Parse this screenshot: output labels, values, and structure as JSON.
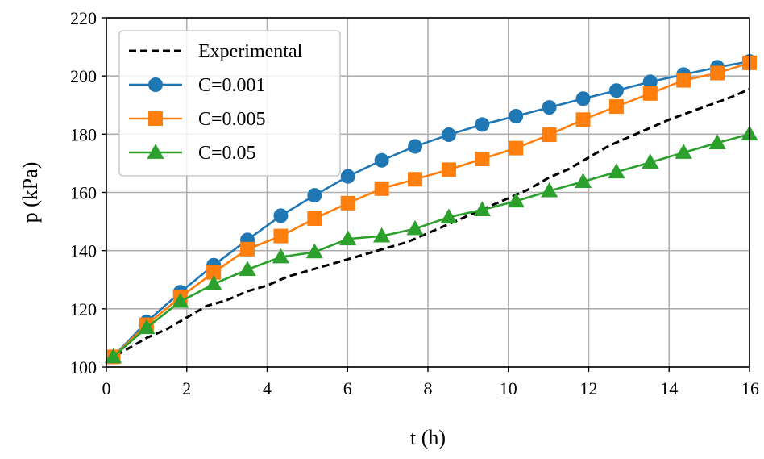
{
  "chart_data": {
    "type": "line",
    "title": "",
    "xlabel": "t (h)",
    "ylabel": "p (kPa)",
    "xlim": [
      0,
      16
    ],
    "ylim": [
      100,
      220
    ],
    "xticks": [
      0,
      2,
      4,
      6,
      8,
      10,
      12,
      14,
      16
    ],
    "yticks": [
      100,
      120,
      140,
      160,
      180,
      200,
      220
    ],
    "grid": true,
    "legend_position": "top-left",
    "series": [
      {
        "name": "Experimental",
        "style": "dashed",
        "marker": "none",
        "color": "#000000",
        "x": [
          0,
          0.5,
          1,
          1.5,
          2,
          2.5,
          3,
          3.5,
          4,
          4.5,
          5,
          5.5,
          6,
          6.5,
          7,
          7.5,
          8,
          8.5,
          9,
          9.5,
          10,
          10.5,
          11,
          11.5,
          12,
          12.5,
          13,
          13.5,
          14,
          14.5,
          15,
          15.5,
          16
        ],
        "y": [
          102,
          106,
          110,
          113,
          117,
          121,
          123,
          126,
          128,
          131,
          133,
          135,
          137,
          139,
          141,
          143,
          146,
          149,
          152,
          155,
          158,
          161,
          165,
          168,
          172,
          176,
          179,
          182,
          185,
          187.5,
          190,
          192.5,
          195.5
        ]
      },
      {
        "name": "C=0.001",
        "style": "solid",
        "marker": "circle",
        "color": "#1f77b4",
        "x": [
          0.17,
          1.0,
          1.84,
          2.67,
          3.51,
          4.34,
          5.18,
          6.01,
          6.85,
          7.68,
          8.52,
          9.35,
          10.19,
          11.02,
          11.86,
          12.69,
          13.53,
          14.36,
          15.2,
          16.0
        ],
        "y": [
          103.5,
          115.5,
          125.7,
          135.0,
          143.7,
          152.0,
          159.0,
          165.5,
          171.0,
          175.8,
          179.8,
          183.3,
          186.2,
          189.2,
          192.2,
          195.0,
          198.0,
          200.5,
          203.0,
          205.0
        ]
      },
      {
        "name": "C=0.005",
        "style": "solid",
        "marker": "square",
        "color": "#ff7f0e",
        "x": [
          0.17,
          1.0,
          1.84,
          2.67,
          3.51,
          4.34,
          5.18,
          6.01,
          6.85,
          7.68,
          8.52,
          9.35,
          10.19,
          11.02,
          11.86,
          12.69,
          13.53,
          14.36,
          15.2,
          16.0
        ],
        "y": [
          103.5,
          114.5,
          124.0,
          132.5,
          140.5,
          145.0,
          151.0,
          156.3,
          161.3,
          164.5,
          167.8,
          171.5,
          175.2,
          179.8,
          185.0,
          189.5,
          194.0,
          198.5,
          201.0,
          204.5
        ]
      },
      {
        "name": "C=0.05",
        "style": "solid",
        "marker": "triangle",
        "color": "#2ca02c",
        "x": [
          0.17,
          1.0,
          1.84,
          2.67,
          3.51,
          4.34,
          5.18,
          6.01,
          6.85,
          7.68,
          8.52,
          9.35,
          10.19,
          11.02,
          11.86,
          12.69,
          13.53,
          14.36,
          15.2,
          16.0
        ],
        "y": [
          103.5,
          113.5,
          122.5,
          128.5,
          133.5,
          137.8,
          139.5,
          144.0,
          145.0,
          147.5,
          151.5,
          154.0,
          157.0,
          160.5,
          163.7,
          167.0,
          170.3,
          173.7,
          177.0,
          180.0
        ]
      }
    ]
  }
}
